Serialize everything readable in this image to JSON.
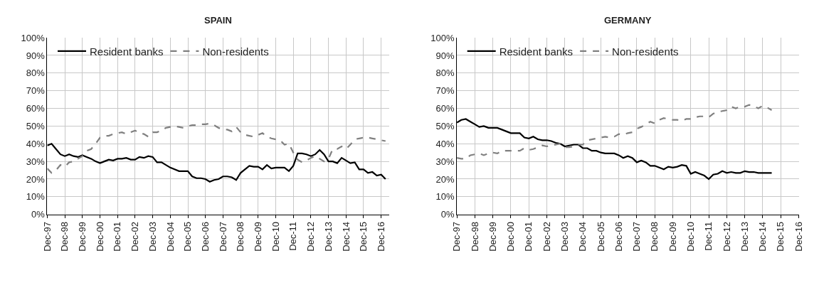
{
  "chart_data": [
    {
      "type": "line",
      "title": "SPAIN",
      "legend": "top left",
      "grid": true,
      "x": [
        "1997-12",
        "1998-03",
        "1998-06",
        "1998-09",
        "1998-12",
        "1999-03",
        "1999-06",
        "1999-09",
        "1999-12",
        "2000-03",
        "2000-06",
        "2000-09",
        "2000-12",
        "2001-03",
        "2001-06",
        "2001-09",
        "2001-12",
        "2002-03",
        "2002-06",
        "2002-09",
        "2002-12",
        "2003-03",
        "2003-06",
        "2003-09",
        "2003-12",
        "2004-03",
        "2004-06",
        "2004-09",
        "2004-12",
        "2005-03",
        "2005-06",
        "2005-09",
        "2005-12",
        "2006-03",
        "2006-06",
        "2006-09",
        "2006-12",
        "2007-03",
        "2007-06",
        "2007-09",
        "2007-12",
        "2008-03",
        "2008-06",
        "2008-09",
        "2008-12",
        "2009-03",
        "2009-06",
        "2009-09",
        "2009-12",
        "2010-03",
        "2010-06",
        "2010-09",
        "2010-12",
        "2011-03",
        "2011-06",
        "2011-09",
        "2011-12",
        "2012-03",
        "2012-06",
        "2012-09",
        "2012-12",
        "2013-03",
        "2013-06",
        "2013-09",
        "2013-12",
        "2014-03",
        "2014-06",
        "2014-09",
        "2014-12",
        "2015-03",
        "2015-06",
        "2015-09",
        "2015-12",
        "2016-03",
        "2016-06",
        "2016-09",
        "2016-12",
        "2017-03"
      ],
      "xlim": [
        "1997-12-01",
        "2017-05-15"
      ],
      "xticks": [
        {
          "value": "1997-12-01",
          "label": "Dec-97"
        },
        {
          "value": "1998-12-01",
          "label": "Dec-98"
        },
        {
          "value": "1999-12-01",
          "label": "Dec-99"
        },
        {
          "value": "2000-12-01",
          "label": "Dec-00"
        },
        {
          "value": "2001-12-01",
          "label": "Dec-01"
        },
        {
          "value": "2002-12-01",
          "label": "Dec-02"
        },
        {
          "value": "2003-12-01",
          "label": "Dec-03"
        },
        {
          "value": "2004-12-01",
          "label": "Dec-04"
        },
        {
          "value": "2005-12-01",
          "label": "Dec-05"
        },
        {
          "value": "2006-12-01",
          "label": "Dec-06"
        },
        {
          "value": "2007-12-01",
          "label": "Dec-07"
        },
        {
          "value": "2008-12-01",
          "label": "Dec-08"
        },
        {
          "value": "2009-12-01",
          "label": "Dec-09"
        },
        {
          "value": "2010-12-01",
          "label": "Dec-10"
        },
        {
          "value": "2011-12-01",
          "label": "Dec-11"
        },
        {
          "value": "2012-12-01",
          "label": "Dec-12"
        },
        {
          "value": "2013-12-01",
          "label": "Dec-13"
        },
        {
          "value": "2014-12-01",
          "label": "Dec-14"
        },
        {
          "value": "2015-12-01",
          "label": "Dec-15"
        },
        {
          "value": "2016-12-01",
          "label": "Dec-16"
        }
      ],
      "ylim": [
        0,
        100
      ],
      "yticks": [
        {
          "value": 0,
          "label": "0%"
        },
        {
          "value": 10,
          "label": "10%"
        },
        {
          "value": 20,
          "label": "20%"
        },
        {
          "value": 30,
          "label": "30%"
        },
        {
          "value": 40,
          "label": "40%"
        },
        {
          "value": 50,
          "label": "50%"
        },
        {
          "value": 60,
          "label": "60%"
        },
        {
          "value": 70,
          "label": "70%"
        },
        {
          "value": 80,
          "label": "80%"
        },
        {
          "value": 90,
          "label": "90%"
        },
        {
          "value": 100,
          "label": "100%"
        }
      ],
      "series": [
        {
          "name": "Resident banks",
          "color": "#000000",
          "line_style": "solid",
          "values": [
            39,
            40,
            37,
            34,
            33,
            34,
            33,
            32.5,
            33.5,
            32.5,
            31.5,
            30,
            29,
            30,
            31,
            30.5,
            31.5,
            31.5,
            32,
            31,
            31,
            32.5,
            32,
            33,
            32.5,
            29.5,
            29.5,
            28,
            26.5,
            25.5,
            24.5,
            24.5,
            24.5,
            21.5,
            20.5,
            20.5,
            20,
            18.5,
            19.5,
            20,
            21.5,
            21.5,
            21,
            19.5,
            23.5,
            25.5,
            27.5,
            27,
            27,
            25.5,
            28,
            26,
            26.5,
            26.5,
            26.5,
            24.5,
            27.5,
            34.5,
            34.5,
            34,
            33,
            34,
            36.5,
            34,
            30,
            30,
            29,
            32,
            30.5,
            29,
            29.5,
            25.5,
            25.5,
            23.5,
            24,
            22,
            22.5,
            20
          ]
        },
        {
          "name": "Non-residents",
          "color": "#808080",
          "line_style": "dashed",
          "values": [
            26,
            23.5,
            25,
            28,
            27,
            29.5,
            30,
            31.5,
            33,
            36,
            37,
            40,
            43.5,
            44.5,
            44.5,
            45.5,
            46,
            46.5,
            45.5,
            46.5,
            47.5,
            46,
            45.5,
            44,
            46.5,
            46.5,
            47.5,
            49,
            49.5,
            50,
            49.5,
            49,
            50,
            50.5,
            50.5,
            51,
            51,
            51.5,
            50.5,
            49,
            48,
            48,
            47,
            49.5,
            46.5,
            45,
            44.5,
            44,
            45,
            46,
            44,
            43,
            42.5,
            42,
            39.5,
            40,
            35,
            31,
            29.5,
            30.5,
            32,
            33,
            31.5,
            30,
            31.5,
            37,
            37,
            38.5,
            37,
            39.5,
            42.5,
            43,
            43.5,
            43.5,
            43,
            42.5,
            42,
            41.5
          ]
        }
      ]
    },
    {
      "type": "line",
      "title": "GERMANY",
      "legend": "top left",
      "grid": true,
      "x": [
        "1997-12",
        "1998-03",
        "1998-06",
        "1998-09",
        "1998-12",
        "1999-03",
        "1999-06",
        "1999-09",
        "1999-12",
        "2000-03",
        "2000-06",
        "2000-09",
        "2000-12",
        "2001-03",
        "2001-06",
        "2001-09",
        "2001-12",
        "2002-03",
        "2002-06",
        "2002-09",
        "2002-12",
        "2003-03",
        "2003-06",
        "2003-09",
        "2003-12",
        "2004-03",
        "2004-06",
        "2004-09",
        "2004-12",
        "2005-03",
        "2005-06",
        "2005-09",
        "2005-12",
        "2006-03",
        "2006-06",
        "2006-09",
        "2006-12",
        "2007-03",
        "2007-06",
        "2007-09",
        "2007-12",
        "2008-03",
        "2008-06",
        "2008-09",
        "2008-12",
        "2009-03",
        "2009-06",
        "2009-09",
        "2009-12",
        "2010-03",
        "2010-06",
        "2010-09",
        "2010-12",
        "2011-03",
        "2011-06",
        "2011-09",
        "2011-12",
        "2012-03",
        "2012-06",
        "2012-09",
        "2012-12",
        "2013-03",
        "2013-06",
        "2013-09",
        "2013-12",
        "2014-03",
        "2014-06",
        "2014-09",
        "2014-12",
        "2015-03",
        "2015-06"
      ],
      "xlim": [
        "1997-12-01",
        "2016-12-01"
      ],
      "xticks": [
        {
          "value": "1997-12-01",
          "label": "Dec-97"
        },
        {
          "value": "1998-12-01",
          "label": "Dec-98"
        },
        {
          "value": "1999-12-01",
          "label": "Dec-99"
        },
        {
          "value": "2000-12-01",
          "label": "Dec-00"
        },
        {
          "value": "2001-12-01",
          "label": "Dec-01"
        },
        {
          "value": "2002-12-01",
          "label": "Dec-02"
        },
        {
          "value": "2003-12-01",
          "label": "Dec-03"
        },
        {
          "value": "2004-12-01",
          "label": "Dec-04"
        },
        {
          "value": "2005-12-01",
          "label": "Dec-05"
        },
        {
          "value": "2006-12-01",
          "label": "Dec-06"
        },
        {
          "value": "2007-12-01",
          "label": "Dec-07"
        },
        {
          "value": "2008-12-01",
          "label": "Dec-08"
        },
        {
          "value": "2009-12-01",
          "label": "Dec-09"
        },
        {
          "value": "2010-12-01",
          "label": "Dec-10"
        },
        {
          "value": "2011-12-01",
          "label": "Dec-11"
        },
        {
          "value": "2012-12-01",
          "label": "Dec-12"
        },
        {
          "value": "2013-12-01",
          "label": "Dec-13"
        },
        {
          "value": "2014-12-01",
          "label": "Dec-14"
        },
        {
          "value": "2015-12-01",
          "label": "Dec-15"
        },
        {
          "value": "2016-12-01",
          "label": "Dec-16"
        }
      ],
      "ylim": [
        0,
        100
      ],
      "yticks": [
        {
          "value": 0,
          "label": "0%"
        },
        {
          "value": 10,
          "label": "10%"
        },
        {
          "value": 20,
          "label": "20%"
        },
        {
          "value": 30,
          "label": "30%"
        },
        {
          "value": 40,
          "label": "40%"
        },
        {
          "value": 50,
          "label": "50%"
        },
        {
          "value": 60,
          "label": "60%"
        },
        {
          "value": 70,
          "label": "70%"
        },
        {
          "value": 80,
          "label": "80%"
        },
        {
          "value": 90,
          "label": "90%"
        },
        {
          "value": 100,
          "label": "100%"
        }
      ],
      "series": [
        {
          "name": "Resident banks",
          "color": "#000000",
          "line_style": "solid",
          "values": [
            52,
            53.5,
            54,
            52.5,
            51,
            49.5,
            50,
            49,
            49,
            49,
            48,
            47,
            46,
            46,
            46,
            43.5,
            43,
            44,
            42.5,
            42,
            42,
            41.5,
            40.5,
            40,
            38.5,
            39,
            39.5,
            39.5,
            37.5,
            37.5,
            36,
            36,
            35,
            34.5,
            34.5,
            34.5,
            33.5,
            32,
            33,
            32,
            29.5,
            30.5,
            29.5,
            27.5,
            27.5,
            26.5,
            25.5,
            27,
            26.5,
            27,
            28,
            27.5,
            23,
            24,
            23,
            22,
            20,
            22.5,
            23,
            24.5,
            23.5,
            24,
            23.5,
            23.5,
            24.5,
            24,
            24,
            23.5,
            23.5,
            23.5,
            23.5
          ]
        },
        {
          "name": "Non-residents",
          "color": "#808080",
          "line_style": "dashed",
          "values": [
            32,
            31.5,
            31.5,
            33.5,
            34,
            34.5,
            33.5,
            34.5,
            35,
            34.5,
            36,
            36,
            36,
            36,
            36,
            37.5,
            36.5,
            37,
            38,
            39,
            38.5,
            39,
            39.5,
            40,
            38,
            38,
            38.5,
            39.5,
            39.5,
            42,
            42.5,
            43,
            43.5,
            44,
            43.5,
            44,
            45.5,
            45,
            46,
            46.5,
            48.5,
            49.5,
            51,
            52.5,
            51.5,
            53.5,
            54.5,
            54,
            53.5,
            53.5,
            53,
            54,
            54,
            55,
            55.5,
            55.5,
            55,
            57,
            58,
            58.5,
            59,
            61,
            60,
            61,
            61,
            62,
            61.5,
            60,
            61.5,
            60.5,
            59
          ]
        }
      ]
    }
  ]
}
